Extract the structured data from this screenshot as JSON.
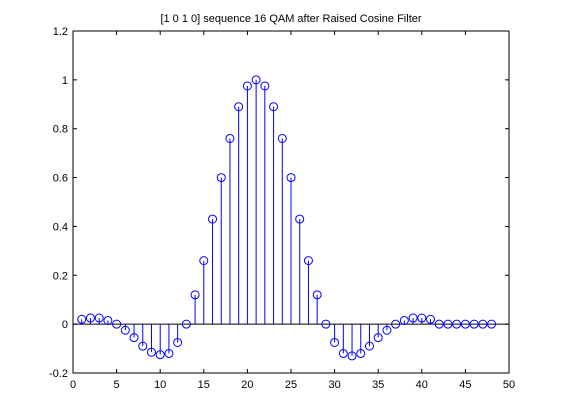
{
  "figure": {
    "background": "#ffffff"
  },
  "chart_data": {
    "type": "stem",
    "title": "[1 0 1 0] sequence 16 QAM after Raised Cosine Filter",
    "xlabel": "",
    "ylabel": "",
    "xlim": [
      0,
      50
    ],
    "ylim": [
      -0.2,
      1.2
    ],
    "xticks": [
      0,
      5,
      10,
      15,
      20,
      25,
      30,
      35,
      40,
      45,
      50
    ],
    "xtick_labels": [
      "0",
      "5",
      "10",
      "15",
      "20",
      "25",
      "30",
      "35",
      "40",
      "45",
      "50"
    ],
    "yticks": [
      -0.2,
      0,
      0.2,
      0.4,
      0.6,
      0.8,
      1,
      1.2
    ],
    "ytick_labels": [
      "-0.2",
      "0",
      "0.2",
      "0.4",
      "0.6",
      "0.8",
      "1",
      "1.2"
    ],
    "grid": false,
    "baseline": 0,
    "colors": {
      "stem": "#0000ff",
      "axes": "#000000",
      "baseline": "#000000"
    },
    "marker": "open-circle",
    "series": [
      {
        "x": [
          1,
          2,
          3,
          4,
          5,
          6,
          7,
          8,
          9,
          10,
          11,
          12,
          13,
          14,
          15,
          16,
          17,
          18,
          19,
          20,
          21,
          22,
          23,
          24,
          25,
          26,
          27,
          28,
          29,
          30,
          31,
          32,
          33,
          34,
          35,
          36,
          37,
          38,
          39,
          40,
          41,
          42,
          43,
          44,
          45,
          46,
          47,
          48
        ],
        "values": [
          0.02,
          0.025,
          0.025,
          0.015,
          0.0,
          -0.025,
          -0.055,
          -0.09,
          -0.115,
          -0.125,
          -0.12,
          -0.075,
          0.0,
          0.12,
          0.26,
          0.43,
          0.6,
          0.76,
          0.89,
          0.975,
          1.0,
          0.975,
          0.89,
          0.76,
          0.6,
          0.43,
          0.26,
          0.12,
          0.0,
          -0.075,
          -0.12,
          -0.13,
          -0.12,
          -0.09,
          -0.055,
          -0.025,
          0.0,
          0.015,
          0.025,
          0.025,
          0.02,
          0.0,
          0.0,
          0.0,
          0.0,
          0.0,
          0.0,
          0.0
        ]
      }
    ]
  }
}
